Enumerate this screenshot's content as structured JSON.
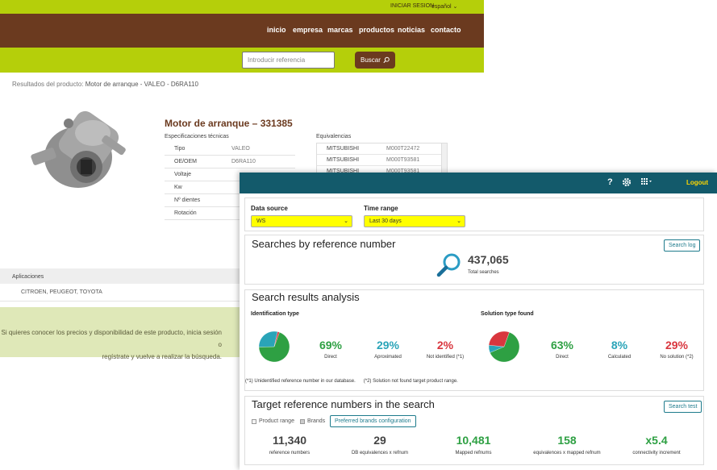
{
  "store": {
    "topbar": {
      "login": "INICIAR SESION",
      "language": "español"
    },
    "nav": [
      "inicio",
      "empresa",
      "marcas",
      "productos",
      "noticias",
      "contacto"
    ],
    "search": {
      "placeholder": "Introducir referencia",
      "button": "Buscar"
    },
    "breadcrumb": {
      "prefix": "Resultados del producto:",
      "product": "Motor de arranque - VALEO - D6RA110"
    },
    "product": {
      "title": "Motor de arranque – 331385",
      "specs_heading": "Especificaciones técnicas",
      "specs": [
        {
          "label": "Tipo",
          "value": "VALEO"
        },
        {
          "label": "OE/OEM",
          "value": "D6RA110"
        },
        {
          "label": "Voltaje",
          "value": ""
        },
        {
          "label": "Kw",
          "value": ""
        },
        {
          "label": "Nº dientes",
          "value": ""
        },
        {
          "label": "Rotación",
          "value": ""
        }
      ],
      "equiv_heading": "Equivalencias",
      "equivalences": [
        {
          "brand": "MITSUBISHI",
          "ref": "M000T22472"
        },
        {
          "brand": "MITSUBISHI",
          "ref": "M000T93581"
        },
        {
          "brand": "MITSUBISHI",
          "ref": "M000T93581"
        }
      ]
    },
    "applications": {
      "heading": "Aplicaciones",
      "value": "CITROEN, PEUGEOT, TOYOTA"
    },
    "notice": {
      "line1": "Si quieres conocer los precios y disponibilidad de este producto, inicia sesión o",
      "line2": "regístrate y vuelve a realizar la búsqueda."
    }
  },
  "dashboard": {
    "header": {
      "help": "?",
      "logout": "Logout",
      "gear_icon": "gear-icon",
      "apps_icon": "grid-icon"
    },
    "filters": {
      "data_source_label": "Data source",
      "data_source_value": "WS",
      "time_range_label": "Time range",
      "time_range_value": "Last 30 days",
      "highlight": "#ffff00"
    },
    "searches": {
      "title": "Searches by reference number",
      "button": "Search log",
      "total": "437,065",
      "total_label": "Total searches",
      "icon": "magnifier-icon"
    },
    "analysis": {
      "title": "Search results analysis",
      "identification": {
        "heading": "Identification type",
        "items": [
          {
            "pct": "69%",
            "label": "Direct",
            "color": "#2ea043"
          },
          {
            "pct": "29%",
            "label": "Aproximated",
            "color": "#2aa4b8"
          },
          {
            "pct": "2%",
            "label": "Not identified (*1)",
            "color": "#d9363e"
          }
        ],
        "fractions": [
          0.69,
          0.29,
          0.02
        ]
      },
      "solution": {
        "heading": "Solution type found",
        "items": [
          {
            "pct": "63%",
            "label": "Direct",
            "color": "#2ea043"
          },
          {
            "pct": "8%",
            "label": "Calculated",
            "color": "#2aa4b8"
          },
          {
            "pct": "29%",
            "label": "No solution (*2)",
            "color": "#d9363e"
          }
        ],
        "fractions": [
          0.63,
          0.08,
          0.29
        ]
      },
      "footnote1": "(*1) Unidentified reference number in our database.",
      "footnote2": "(*2) Solution not found target product range."
    },
    "target": {
      "title": "Target reference numbers in the search",
      "button": "Search test",
      "chk_product_range": "Product range",
      "chk_brands": "Brands",
      "preferred_button": "Preferred brands configuration",
      "stats": [
        {
          "value": "11,340",
          "label": "reference numbers",
          "color": "#444444"
        },
        {
          "value": "29",
          "label": "DB equivalences x refnum",
          "color": "#444444"
        },
        {
          "value": "10,481",
          "label": "Mapped refnums",
          "color": "#2ea043"
        },
        {
          "value": "158",
          "label": "equivalences x mapped refnum",
          "color": "#2ea043"
        },
        {
          "value": "x5.4",
          "label": "connectivity increment",
          "color": "#2ea043"
        }
      ]
    }
  }
}
